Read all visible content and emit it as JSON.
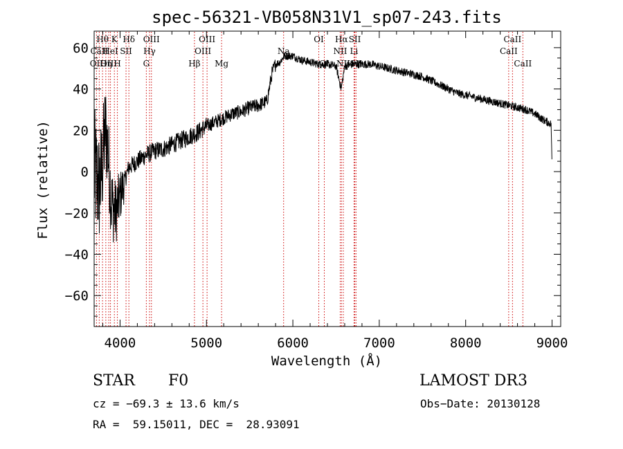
{
  "chart_data": {
    "type": "line",
    "title": "spec-56321-VB058N31V1_sp07-243.fits",
    "xlabel": "Wavelength (Å)",
    "ylabel": "Flux (relative)",
    "xlim": [
      3700,
      9100
    ],
    "ylim": [
      -75,
      68
    ],
    "xticks": [
      4000,
      5000,
      6000,
      7000,
      8000,
      9000
    ],
    "yticks": [
      -60,
      -40,
      -20,
      0,
      20,
      40,
      60
    ],
    "xtick_labels": [
      "4000",
      "5000",
      "6000",
      "7000",
      "8000",
      "9000"
    ],
    "ytick_labels": [
      "−60",
      "−40",
      "−20",
      "0",
      "20",
      "40",
      "60"
    ],
    "grid": false,
    "series": [
      {
        "name": "spectrum",
        "knots": [
          [
            3700,
            0
          ],
          [
            3760,
            -8
          ],
          [
            3800,
            5
          ],
          [
            3830,
            22
          ],
          [
            3860,
            10
          ],
          [
            3900,
            -15
          ],
          [
            3950,
            -20
          ],
          [
            4000,
            -12
          ],
          [
            4050,
            -5
          ],
          [
            4100,
            2
          ],
          [
            4200,
            5
          ],
          [
            4300,
            8
          ],
          [
            4400,
            10
          ],
          [
            4500,
            11
          ],
          [
            4600,
            13
          ],
          [
            4700,
            15
          ],
          [
            4800,
            17
          ],
          [
            4900,
            19
          ],
          [
            5000,
            22
          ],
          [
            5100,
            24
          ],
          [
            5200,
            26
          ],
          [
            5300,
            28
          ],
          [
            5400,
            29
          ],
          [
            5500,
            31
          ],
          [
            5600,
            32
          ],
          [
            5700,
            34
          ],
          [
            5760,
            48
          ],
          [
            5800,
            52
          ],
          [
            5850,
            53
          ],
          [
            5900,
            56
          ],
          [
            6000,
            56
          ],
          [
            6100,
            54
          ],
          [
            6200,
            53
          ],
          [
            6300,
            52
          ],
          [
            6400,
            52
          ],
          [
            6500,
            51
          ],
          [
            6560,
            40
          ],
          [
            6600,
            51
          ],
          [
            6700,
            52
          ],
          [
            6800,
            52
          ],
          [
            6900,
            52
          ],
          [
            7000,
            51
          ],
          [
            7100,
            50
          ],
          [
            7200,
            49
          ],
          [
            7300,
            48
          ],
          [
            7400,
            47
          ],
          [
            7500,
            46
          ],
          [
            7600,
            44
          ],
          [
            7700,
            42
          ],
          [
            7800,
            40
          ],
          [
            7900,
            38
          ],
          [
            8000,
            37
          ],
          [
            8100,
            36
          ],
          [
            8200,
            35
          ],
          [
            8300,
            34
          ],
          [
            8400,
            33
          ],
          [
            8500,
            32
          ],
          [
            8600,
            31
          ],
          [
            8700,
            30
          ],
          [
            8800,
            28
          ],
          [
            8900,
            25
          ],
          [
            8990,
            23
          ],
          [
            9000,
            0
          ]
        ],
        "noise_blue": 32,
        "noise_mid": 3,
        "noise_red": 2
      }
    ],
    "lines": [
      {
        "name": "OII",
        "wl": 3727,
        "row": 2
      },
      {
        "name": "Hθ",
        "wl": 3797,
        "row": 0
      },
      {
        "name": "OIII",
        "wl": 3869,
        "row": 2
      },
      {
        "name": "Hη",
        "wl": 3835,
        "row": 2
      },
      {
        "name": "K",
        "wl": 3934,
        "row": 0
      },
      {
        "name": "CaII",
        "wl": 3759,
        "row": 1
      },
      {
        "name": "HeI",
        "wl": 3889,
        "row": 1
      },
      {
        "name": "H",
        "wl": 3969,
        "row": 2
      },
      {
        "name": "SII",
        "wl": 4069,
        "row": 1
      },
      {
        "name": "Hδ",
        "wl": 4102,
        "row": 0
      },
      {
        "name": "OIII",
        "wl": 4363,
        "row": 0
      },
      {
        "name": "Hγ",
        "wl": 4341,
        "row": 1
      },
      {
        "name": "G",
        "wl": 4304,
        "row": 2
      },
      {
        "name": "Hβ",
        "wl": 4861,
        "row": 2
      },
      {
        "name": "OIII",
        "wl": 5007,
        "row": 0
      },
      {
        "name": "OIII",
        "wl": 4959,
        "row": 1
      },
      {
        "name": "Mg",
        "wl": 5175,
        "row": 2
      },
      {
        "name": "Na",
        "wl": 5893,
        "row": 1
      },
      {
        "name": "OI",
        "wl": 6300,
        "row": 0
      },
      {
        "name": "OI",
        "wl": 6364,
        "row": 2
      },
      {
        "name": "Hα",
        "wl": 6563,
        "row": 0
      },
      {
        "name": "NII",
        "wl": 6548,
        "row": 1
      },
      {
        "name": "NII",
        "wl": 6584,
        "row": 2
      },
      {
        "name": "SII",
        "wl": 6717,
        "row": 0
      },
      {
        "name": "Li",
        "wl": 6708,
        "row": 1
      },
      {
        "name": "SII",
        "wl": 6731,
        "row": 2
      },
      {
        "name": "CaII",
        "wl": 8542,
        "row": 0
      },
      {
        "name": "CaII",
        "wl": 8498,
        "row": 1
      },
      {
        "name": "CaII",
        "wl": 8662,
        "row": 2
      }
    ]
  },
  "info": {
    "obj_class": "STAR",
    "subclass": "F0",
    "survey": "LAMOST DR3",
    "cz": "cz = −69.3 ± 13.6 km/s",
    "obs_date": "Obs−Date: 20130128",
    "radec": "RA =  59.15011, DEC =  28.93091"
  },
  "colors": {
    "line_marker": "#cc0000",
    "spectrum": "#000000"
  }
}
